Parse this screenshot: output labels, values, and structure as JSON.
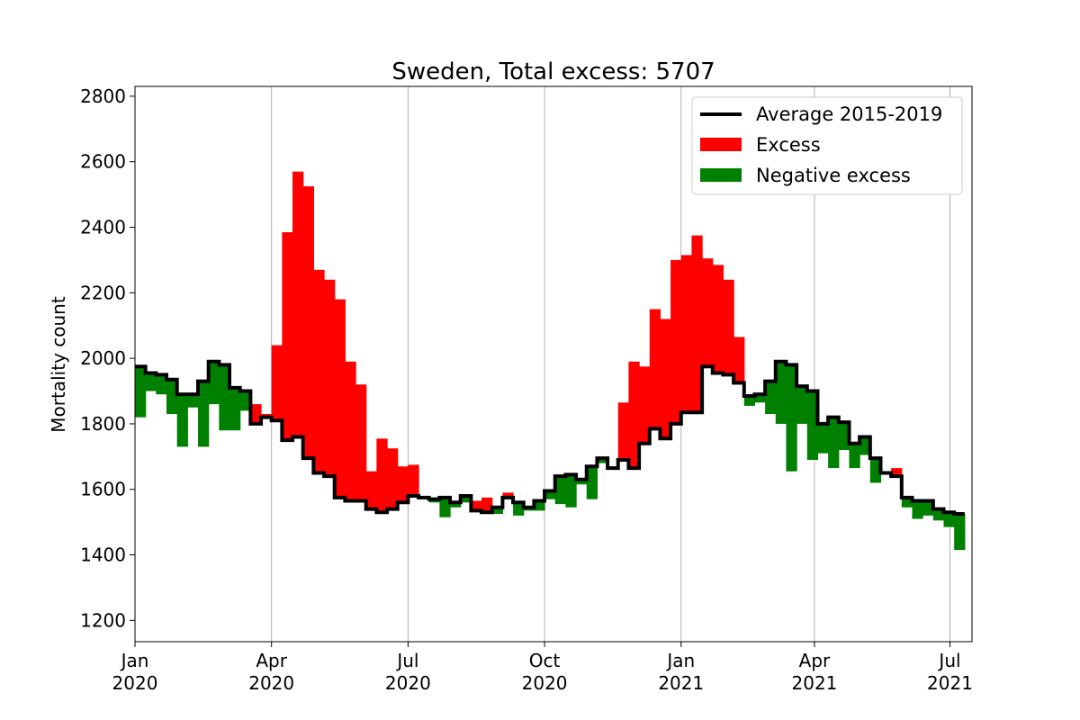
{
  "chart_data": {
    "type": "bar",
    "title": "Sweden, Total excess: 5707",
    "ylabel": "Mortality count",
    "xlabel": "",
    "ylim": [
      1135,
      2830
    ],
    "yticks": [
      1200,
      1400,
      1600,
      1800,
      2000,
      2200,
      2400,
      2600,
      2800
    ],
    "x_range_weeks": [
      0,
      79.7
    ],
    "xticks": [
      {
        "week": 0,
        "month": "Jan",
        "year": "2020"
      },
      {
        "week": 13,
        "month": "Apr",
        "year": "2020"
      },
      {
        "week": 26,
        "month": "Jul",
        "year": "2020"
      },
      {
        "week": 39,
        "month": "Oct",
        "year": "2020"
      },
      {
        "week": 52,
        "month": "Jan",
        "year": "2021"
      },
      {
        "week": 64.7,
        "month": "Apr",
        "year": "2021"
      },
      {
        "week": 77.6,
        "month": "Jul",
        "year": "2021"
      }
    ],
    "grid": "vertical",
    "legend_position": "upper right",
    "legend": [
      "Average 2015-2019",
      "Excess",
      "Negative excess"
    ],
    "colors": {
      "average": "#000000",
      "excess": "#ff0000",
      "negative": "#008000"
    },
    "series": [
      {
        "name": "Average 2015-2019",
        "values": [
          1975,
          1955,
          1950,
          1935,
          1890,
          1890,
          1930,
          1990,
          1980,
          1910,
          1900,
          1800,
          1820,
          1810,
          1750,
          1760,
          1695,
          1650,
          1640,
          1575,
          1565,
          1565,
          1540,
          1530,
          1540,
          1560,
          1580,
          1575,
          1570,
          1575,
          1560,
          1580,
          1535,
          1530,
          1545,
          1575,
          1560,
          1545,
          1565,
          1595,
          1640,
          1645,
          1630,
          1670,
          1695,
          1665,
          1690,
          1665,
          1740,
          1785,
          1755,
          1800,
          1835,
          1835,
          1975,
          1955,
          1950,
          1925,
          1885,
          1890,
          1930,
          1990,
          1980,
          1915,
          1900,
          1800,
          1820,
          1805,
          1740,
          1760,
          1695,
          1650,
          1640,
          1575,
          1565,
          1565,
          1540,
          1530,
          1525
        ]
      },
      {
        "name": "Excess",
        "values": [
          1820,
          1900,
          1890,
          1830,
          1730,
          1850,
          1730,
          1860,
          1780,
          1780,
          1840,
          1860,
          1830,
          2040,
          2385,
          2570,
          2525,
          2270,
          2240,
          2180,
          1990,
          1920,
          1655,
          1755,
          1725,
          1670,
          1675,
          1580,
          1560,
          1515,
          1545,
          1560,
          1565,
          1575,
          1525,
          1590,
          1520,
          1535,
          1535,
          1570,
          1555,
          1545,
          1615,
          1570,
          1680,
          1670,
          1865,
          1990,
          1975,
          2150,
          2120,
          2300,
          2315,
          2375,
          2305,
          2285,
          2240,
          2065,
          1855,
          1865,
          1830,
          1800,
          1655,
          1800,
          1690,
          1710,
          1665,
          1720,
          1665,
          1705,
          1620,
          1655,
          1665,
          1545,
          1510,
          1520,
          1505,
          1485,
          1415
        ]
      }
    ]
  }
}
